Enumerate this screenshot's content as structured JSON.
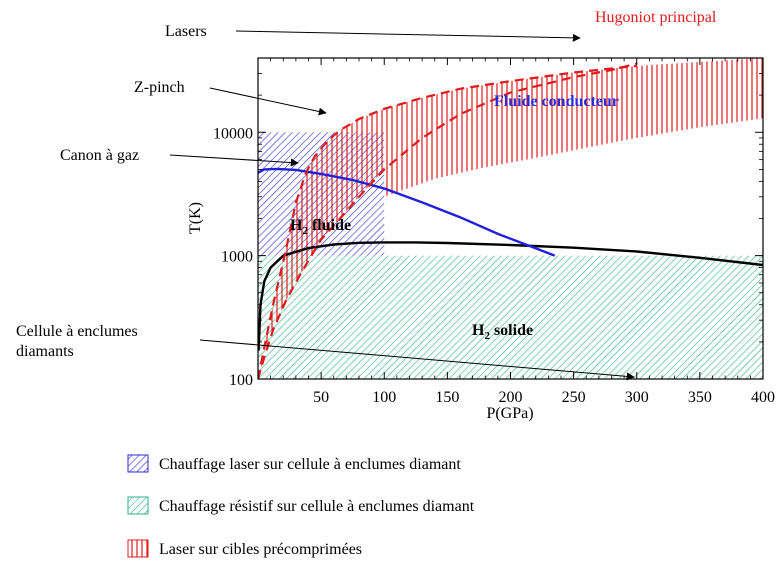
{
  "chart_data": {
    "type": "line",
    "xlabel": "P(GPa)",
    "ylabel": "T(K)",
    "xlim": [
      0,
      400
    ],
    "ylim": [
      100,
      40000
    ],
    "y_scale": "log",
    "x_ticks": [
      50,
      100,
      150,
      200,
      250,
      300,
      350,
      400
    ],
    "y_ticks": [
      {
        "value": 100,
        "label": "100"
      },
      {
        "value": 1000,
        "label": "1000"
      },
      {
        "value": 10000,
        "label": "10000"
      }
    ],
    "grid": false,
    "regions": [
      {
        "label_main": "H",
        "label_sub": "2",
        "label_rest": " solide",
        "color": "#2bb38a"
      },
      {
        "label_main": "H",
        "label_sub": "2",
        "label_rest": " fluide",
        "color": "#000000"
      },
      {
        "label_main": "Fluide conducteur",
        "label_sub": "",
        "label_rest": "",
        "color": "#2b2bd9"
      }
    ],
    "series": [
      {
        "style": "solid",
        "color": "#000000",
        "points": [
          [
            0.5,
            170
          ],
          [
            2,
            400
          ],
          [
            5,
            620
          ],
          [
            10,
            800
          ],
          [
            20,
            1000
          ],
          [
            40,
            1150
          ],
          [
            60,
            1230
          ],
          [
            80,
            1270
          ],
          [
            100,
            1280
          ],
          [
            125,
            1280
          ],
          [
            150,
            1265
          ],
          [
            200,
            1220
          ],
          [
            250,
            1160
          ],
          [
            300,
            1080
          ],
          [
            350,
            960
          ],
          [
            400,
            840
          ]
        ]
      },
      {
        "style": "solid",
        "color": "#1f1fdd",
        "points": [
          [
            0,
            4700
          ],
          [
            5,
            5000
          ],
          [
            15,
            5050
          ],
          [
            30,
            4950
          ],
          [
            50,
            4600
          ],
          [
            75,
            4100
          ],
          [
            100,
            3500
          ],
          [
            130,
            2700
          ],
          [
            160,
            2050
          ],
          [
            190,
            1500
          ],
          [
            215,
            1200
          ],
          [
            235,
            1000
          ]
        ]
      },
      {
        "name": "Hugoniot principal",
        "style": "dashed",
        "color": "#e01b1b",
        "points": [
          [
            0,
            100
          ],
          [
            5,
            150
          ],
          [
            12,
            250
          ],
          [
            22,
            430
          ],
          [
            35,
            750
          ],
          [
            50,
            1350
          ],
          [
            65,
            2000
          ],
          [
            80,
            3000
          ],
          [
            100,
            5000
          ],
          [
            130,
            9000
          ],
          [
            160,
            14000
          ],
          [
            200,
            21000
          ],
          [
            250,
            28000
          ],
          [
            280,
            32000
          ],
          [
            300,
            36000
          ]
        ]
      },
      {
        "style": "dashed",
        "color": "#e01b1b",
        "points": [
          [
            0,
            100
          ],
          [
            5,
            180
          ],
          [
            12,
            400
          ],
          [
            22,
            1100
          ],
          [
            30,
            2700
          ],
          [
            38,
            4700
          ],
          [
            45,
            6400
          ],
          [
            55,
            8500
          ],
          [
            65,
            10400
          ],
          [
            80,
            12800
          ],
          [
            100,
            15500
          ],
          [
            130,
            19000
          ],
          [
            160,
            22500
          ],
          [
            200,
            26000
          ],
          [
            250,
            30500
          ],
          [
            300,
            34500
          ]
        ]
      },
      {
        "style": "solid",
        "color": "#e01b1b",
        "points": [
          [
            100,
            3000
          ],
          [
            140,
            4200
          ],
          [
            180,
            5200
          ],
          [
            220,
            6200
          ],
          [
            260,
            7500
          ],
          [
            300,
            9000
          ],
          [
            350,
            11000
          ],
          [
            400,
            13000
          ]
        ]
      }
    ],
    "annotations": [
      {
        "text": "Lasers"
      },
      {
        "text": "Hugoniot principal",
        "color": "#e01b1b"
      },
      {
        "text": "Z-pinch"
      },
      {
        "text": "Canon à gaz"
      },
      {
        "text": "Cellule à enclumes"
      },
      {
        "text": "diamants"
      }
    ],
    "legend": {
      "placement": "bottom",
      "entries": [
        {
          "label": "Chauffage laser sur cellule à enclumes diamant",
          "color": "#2b2bd9",
          "pattern": "diagonal"
        },
        {
          "label": "Chauffage résistif sur cellule à enclumes diamant",
          "color": "#2bb38a",
          "pattern": "diagonal"
        },
        {
          "label": "Laser sur cibles précomprimées",
          "color": "#e01b1b",
          "pattern": "vertical"
        }
      ]
    }
  }
}
